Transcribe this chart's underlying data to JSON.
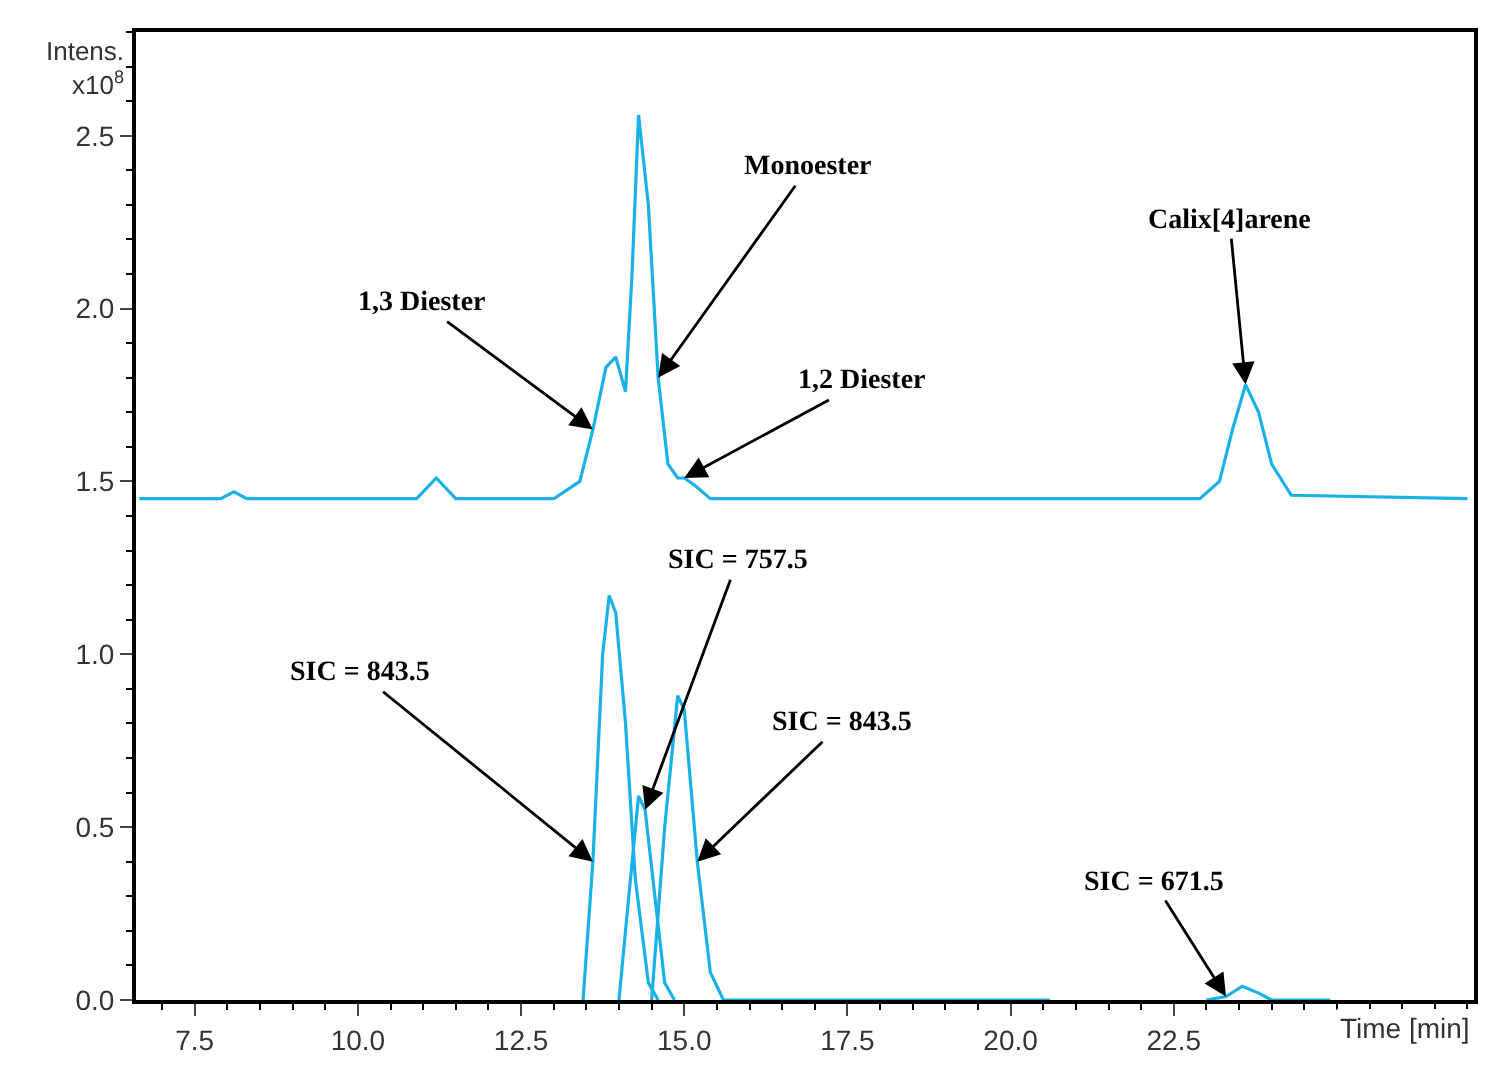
{
  "chart_data": {
    "type": "line",
    "ylabel": "Intens.\nx10$^{8}$",
    "xlabel": "Time [min]",
    "xlim": [
      6.6,
      27.1
    ],
    "xticks": [
      7.5,
      {
        "value": 10,
        "label": "10.0"
      },
      12.5,
      {
        "value": 15,
        "label": "15.0"
      },
      17.5,
      {
        "value": 20,
        "label": "20.0"
      },
      22.5
    ],
    "ylim": [
      0,
      2.8
    ],
    "yticks": [
      {
        "value": 0,
        "label": "0.0"
      },
      0.5,
      {
        "value": 1,
        "label": "1.0"
      },
      1.5,
      {
        "value": 2,
        "label": "2.0"
      },
      2.5
    ],
    "marker": "none",
    "line_style": "solid",
    "series": [
      {
        "color": "#1ab0e8",
        "x": [
          6.65,
          7.9,
          8.1,
          8.3,
          10.9,
          11.2,
          11.5,
          13.0,
          13.4,
          13.6,
          13.8,
          13.95,
          14.1,
          14.2,
          14.3,
          14.45,
          14.6,
          14.75,
          14.9,
          15.0,
          15.15,
          15.4,
          16.0,
          22.9,
          23.2,
          23.4,
          23.6,
          23.8,
          24.0,
          24.3,
          27.0
        ],
        "values": [
          1.45,
          1.45,
          1.47,
          1.45,
          1.45,
          1.51,
          1.45,
          1.45,
          1.5,
          1.65,
          1.83,
          1.86,
          1.76,
          2.1,
          2.56,
          2.3,
          1.8,
          1.55,
          1.51,
          1.51,
          1.49,
          1.45,
          1.45,
          1.45,
          1.5,
          1.65,
          1.78,
          1.7,
          1.55,
          1.46,
          1.45
        ]
      },
      {
        "color": "#1ab0e8",
        "x": [
          13.45,
          13.6,
          13.75,
          13.85,
          13.95,
          14.1,
          14.25,
          14.45,
          14.6
        ],
        "values": [
          0,
          0.4,
          1.0,
          1.17,
          1.12,
          0.8,
          0.35,
          0.05,
          0
        ]
      },
      {
        "color": "#1ab0e8",
        "x": [
          14.0,
          14.15,
          14.3,
          14.4,
          14.55,
          14.7,
          14.85
        ],
        "values": [
          0,
          0.3,
          0.59,
          0.55,
          0.3,
          0.05,
          0
        ]
      },
      {
        "color": "#1ab0e8",
        "x": [
          14.5,
          14.7,
          14.9,
          15.0,
          15.2,
          15.4,
          15.6,
          20.6
        ],
        "values": [
          0,
          0.5,
          0.88,
          0.84,
          0.4,
          0.08,
          0,
          0
        ]
      },
      {
        "color": "#1ab0e8",
        "x": [
          23.0,
          23.3,
          23.55,
          23.8,
          24.0,
          24.9
        ],
        "values": [
          0,
          0.01,
          0.04,
          0.02,
          0,
          0
        ]
      }
    ],
    "annotations": [
      {
        "text": "1,3 Diester",
        "x": 13.6,
        "y": 1.65
      },
      {
        "text": "Monoester",
        "x": 14.6,
        "y": 1.8
      },
      {
        "text": "1,2 Diester",
        "x": 15.0,
        "y": 1.51
      },
      {
        "text": "Calix[4]arene",
        "x": 23.6,
        "y": 1.78
      },
      {
        "text": "SIC = 843.5",
        "x": 13.6,
        "y": 0.4
      },
      {
        "text": "SIC = 757.5",
        "x": 14.4,
        "y": 0.55
      },
      {
        "text": "SIC = 843.5",
        "x": 15.2,
        "y": 0.4
      },
      {
        "text": "SIC = 671.5",
        "x": 23.3,
        "y": 0.01
      }
    ]
  }
}
